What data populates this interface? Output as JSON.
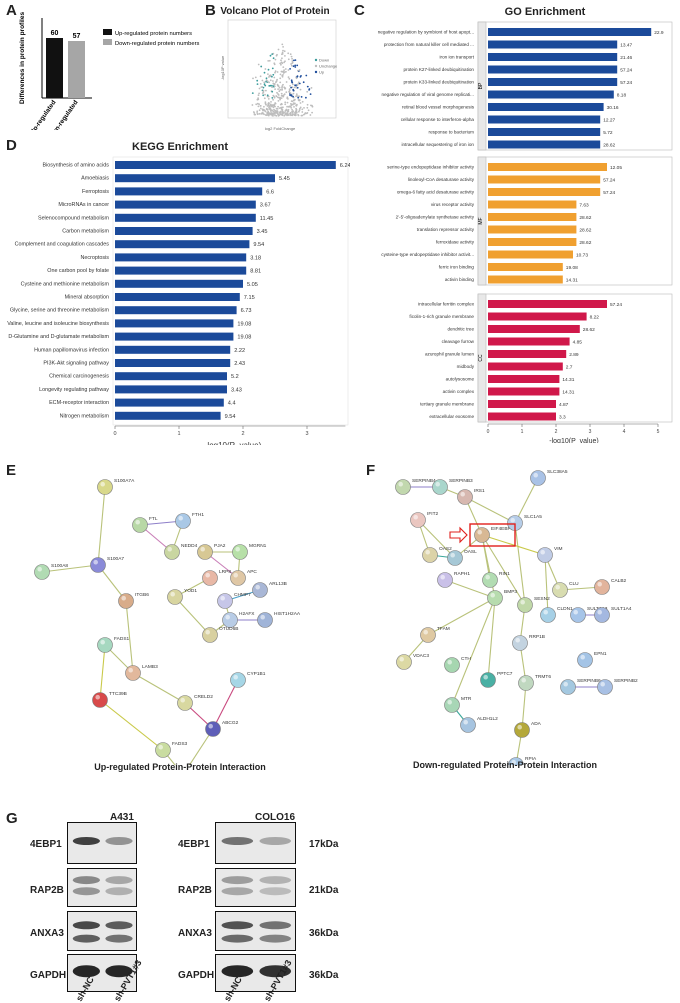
{
  "panels": {
    "A": "A",
    "B": "B",
    "C": "C",
    "D": "D",
    "E": "E",
    "F": "F",
    "G": "G"
  },
  "panel_a": {
    "ylabel": "Differences in protein profiles",
    "legend": [
      "Up-regulated protein numbers",
      "Down-regulated protein numbers"
    ],
    "colors": [
      "#111111",
      "#a6a6a6"
    ],
    "chart_data": {
      "type": "bar",
      "categories": [
        "Up-regulated",
        "Down-regulated"
      ],
      "values": [
        60,
        57
      ],
      "ylim": [
        0,
        80
      ]
    }
  },
  "panel_b": {
    "title": "Volcano Plot of Protein",
    "xlabel": "log2 FoldChange",
    "ylabel": "-log10P value",
    "legend": [
      "Down",
      "Unchange",
      "Up"
    ],
    "colors": {
      "down": "#3b9c9c",
      "unchange": "#bdbdbd",
      "up": "#1f4e9c"
    }
  },
  "panel_c": {
    "title": "GO Enrichment",
    "xlabel": "-log10(P_value)",
    "ticks": [
      "0",
      "1",
      "2",
      "3",
      "4",
      "5"
    ],
    "groups": [
      {
        "name": "BP",
        "color": "#1b4a9a",
        "terms": [
          "negative regulation by symbiont of host apopt...",
          "protection from natural killer cell mediated ...",
          "iron ion transport",
          "protein K27-linked deubiquitination",
          "protein K33-linked deubiquitination",
          "negative regulation of viral genome replicati...",
          "retinal blood vessel morphogenesis",
          "cellular response to interferon-alpha",
          "response to bacterium",
          "intracellular sequestering of iron ion"
        ],
        "values": [
          4.8,
          3.8,
          3.8,
          3.8,
          3.8,
          3.7,
          3.4,
          3.3,
          3.3,
          3.3
        ],
        "labels": [
          "22.9",
          "13.47",
          "21.46",
          "57.24",
          "57.24",
          "8.18",
          "30.16",
          "12.27",
          "5.72",
          "28.62"
        ]
      },
      {
        "name": "MF",
        "color": "#f0a030",
        "terms": [
          "serine-type endopeptidase inhibitor activity",
          "linoleoyl-CoA desaturase activity",
          "omega-6 fatty acid desaturase activity",
          "virus receptor activity",
          "2'-5'-oligoadenylate synthetase activity",
          "translation repressor activity",
          "ferroxidase activity",
          "cysteine-type endopeptidase inhibitor activit...",
          "ferric iron binding",
          "activin binding"
        ],
        "values": [
          3.5,
          3.3,
          3.3,
          2.6,
          2.6,
          2.6,
          2.6,
          2.5,
          2.2,
          2.2
        ],
        "labels": [
          "12.05",
          "57.24",
          "57.24",
          "7.63",
          "28.62",
          "28.62",
          "28.62",
          "10.73",
          "19.08",
          "14.31"
        ]
      },
      {
        "name": "CC",
        "color": "#d0184a",
        "terms": [
          "intracellular ferritin complex",
          "ficolin-1-rich granule membrane",
          "dendritic tree",
          "cleavage furrow",
          "azurophil granule lumen",
          "midbody",
          "autolysosome",
          "activin complex",
          "tertiary granule membrane",
          "extracellular exosome"
        ],
        "values": [
          3.5,
          2.9,
          2.7,
          2.4,
          2.3,
          2.2,
          2.1,
          2.1,
          2.0,
          2.0
        ],
        "labels": [
          "57.24",
          "8.22",
          "28.62",
          "4.85",
          "2.89",
          "2.7",
          "14.31",
          "14.31",
          "4.87",
          "3.3"
        ]
      }
    ]
  },
  "panel_d": {
    "title": "KEGG Enrichment",
    "xlabel": "-log10(P_value)",
    "color": "#1b4a9a",
    "chart_data": {
      "type": "bar",
      "ylim": [
        0,
        3.6
      ],
      "categories": [
        "Biosynthesis of amino acids",
        "Amoebiasis",
        "Ferroptosis",
        "MicroRNAs in cancer",
        "Selenocompound metabolism",
        "Carbon metabolism",
        "Complement and coagulation cascades",
        "Necroptosis",
        "One carbon pool by folate",
        "Cysteine and methionine metabolism",
        "Mineral absorption",
        "Glycine, serine and threonine metabolism",
        "Valine, leucine and isoleucine biosynthesis",
        "D-Glutamine and D-glutamate metabolism",
        "Human papillomavirus infection",
        "PI3K-Akt signaling pathway",
        "Chemical carcinogenesis",
        "Longevity regulating pathway",
        "ECM-receptor interaction",
        "Nitrogen metabolism"
      ],
      "values": [
        3.45,
        2.5,
        2.3,
        2.2,
        2.2,
        2.15,
        2.1,
        2.05,
        2.05,
        2.0,
        1.95,
        1.9,
        1.85,
        1.85,
        1.8,
        1.8,
        1.75,
        1.75,
        1.7,
        1.65
      ],
      "labels": [
        "6.24",
        "5.45",
        "6.6",
        "3.67",
        "11.45",
        "3.45",
        "9.54",
        "3.18",
        "8.81",
        "5.05",
        "7.15",
        "6.73",
        "19.08",
        "19.08",
        "2.22",
        "2.43",
        "5.2",
        "3.43",
        "4.4",
        "9.54"
      ],
      "ticks": [
        "0",
        "1",
        "2",
        "3"
      ]
    }
  },
  "panel_e": {
    "caption": "Up-regulated Protein-Protein Interaction",
    "nodes": [
      "S100A7A",
      "FTL",
      "FTH1",
      "NEDD4",
      "PJA2",
      "MGRN1",
      "APC",
      "LRP8",
      "S100A8",
      "S100A7",
      "ITGB6",
      "YOD1",
      "CHMP7",
      "ARL13B",
      "H2AFX",
      "HIST1H2AA",
      "OTUD6B",
      "FADS1",
      "LAMB3",
      "CYP1B1",
      "TTC39B",
      "CRELD2",
      "ABCG2",
      "FADS3",
      "DPYD"
    ]
  },
  "panel_f": {
    "caption": "Down-regulated Protein-Protein Interaction",
    "nodes": [
      "SERPINB4",
      "SERPINB3",
      "IRS1",
      "SLC38A5",
      "IFIT2",
      "EIF4EBP1",
      "SLC1A5",
      "OAS2",
      "OASL",
      "VIM",
      "CLU",
      "CALB2",
      "SULT1A3",
      "SULT1A4",
      "RAPH1",
      "RIN1",
      "BMP3",
      "SESN2",
      "CLDN1",
      "RRP1B",
      "TFAM",
      "EPN1",
      "VDAC3",
      "CTH",
      "PPTC7",
      "TRMT6",
      "SERPINB6",
      "SERPINB2",
      "MTR",
      "ALDH1L2",
      "ADA",
      "RPIA"
    ]
  },
  "panel_g": {
    "cell_lines": [
      "A431",
      "COLO16"
    ],
    "proteins": [
      "4EBP1",
      "RAP2B",
      "ANXA3",
      "GAPDH"
    ],
    "kda": [
      "17kDa",
      "21kDa",
      "36kDa",
      "36kDa"
    ],
    "lanes": [
      "sh-NC",
      "sh-PVT1#3"
    ]
  }
}
